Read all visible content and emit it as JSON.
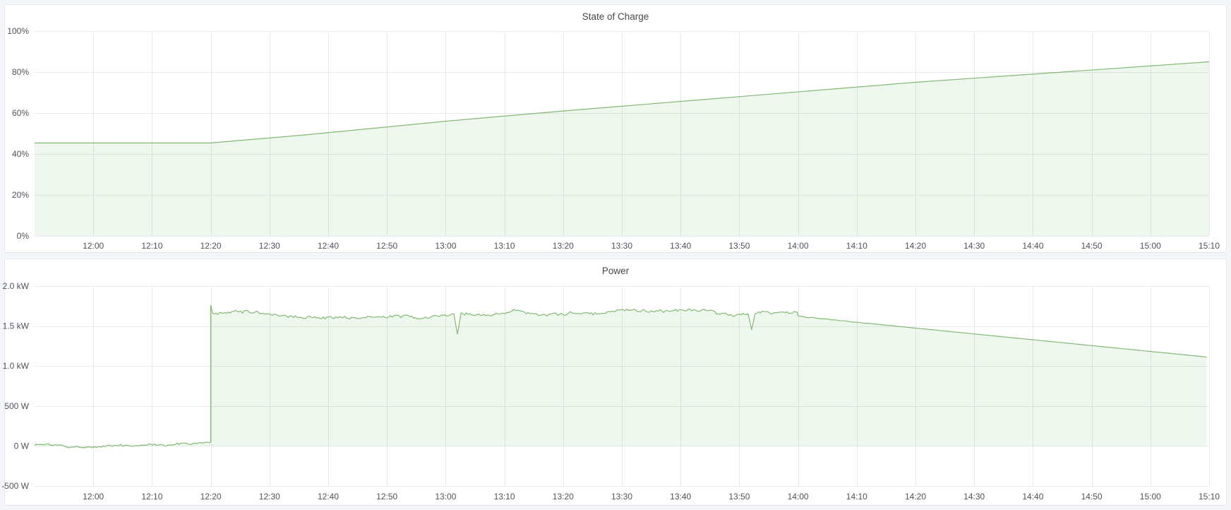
{
  "theme": {
    "page_bg": "#f4f5f9",
    "panel_bg": "#ffffff",
    "panel_border": "#e3e6ea",
    "title_color": "#44484e",
    "axis_text_color": "#4e5259",
    "grid_color": "#e7e9ec",
    "line_color": "#82b874",
    "fill_color": "rgba(115,191,105,0.12)"
  },
  "panels": [
    {
      "title": "State of Charge"
    },
    {
      "title": "Power"
    }
  ],
  "chart_data": [
    {
      "type": "area",
      "title": "State of Charge",
      "x_type": "time",
      "x_range": [
        "11:50",
        "15:10"
      ],
      "x_ticks": [
        "12:00",
        "12:10",
        "12:20",
        "12:30",
        "12:40",
        "12:50",
        "13:00",
        "13:10",
        "13:20",
        "13:30",
        "13:40",
        "13:50",
        "14:00",
        "14:10",
        "14:20",
        "14:30",
        "14:40",
        "14:50",
        "15:00",
        "15:10"
      ],
      "ylim": [
        0,
        100
      ],
      "y_ticks": [
        {
          "value": 0,
          "label": "0%"
        },
        {
          "value": 20,
          "label": "20%"
        },
        {
          "value": 40,
          "label": "40%"
        },
        {
          "value": 60,
          "label": "60%"
        },
        {
          "value": 80,
          "label": "80%"
        },
        {
          "value": 100,
          "label": "100%"
        }
      ],
      "grid": true,
      "legend": "none",
      "series": [
        {
          "name": "State of Charge",
          "mode": "knots",
          "points": [
            [
              "11:50",
              45.4
            ],
            [
              "12:20",
              45.4
            ],
            [
              "12:36",
              49.3
            ],
            [
              "13:00",
              56.0
            ],
            [
              "13:20",
              61.0
            ],
            [
              "13:50",
              68.0
            ],
            [
              "14:20",
              75.0
            ],
            [
              "14:40",
              79.0
            ],
            [
              "15:10",
              85.0
            ]
          ]
        }
      ]
    },
    {
      "type": "area",
      "title": "Power",
      "x_type": "time",
      "x_range": [
        "11:50",
        "15:10"
      ],
      "x_ticks": [
        "12:00",
        "12:10",
        "12:20",
        "12:30",
        "12:40",
        "12:50",
        "13:00",
        "13:10",
        "13:20",
        "13:30",
        "13:40",
        "13:50",
        "14:00",
        "14:10",
        "14:20",
        "14:30",
        "14:40",
        "14:50",
        "15:00",
        "15:10"
      ],
      "ylim": [
        -500,
        2000
      ],
      "y_ticks": [
        {
          "value": -500,
          "label": "-500 W"
        },
        {
          "value": 0,
          "label": "0 W"
        },
        {
          "value": 500,
          "label": "500 W"
        },
        {
          "value": 1000,
          "label": "1.0 kW"
        },
        {
          "value": 1500,
          "label": "1.5 kW"
        },
        {
          "value": 2000,
          "label": "2.0 kW"
        }
      ],
      "grid": true,
      "legend": "none",
      "noise_seed": 1337,
      "series": [
        {
          "name": "Power",
          "mode": "segments",
          "segments": [
            {
              "start": "11:50",
              "end": "12:20",
              "kind": "noise",
              "base": 20,
              "wander": 35,
              "jitter": 22,
              "step_min": 0.3
            },
            {
              "start": "12:20",
              "end": "14:00",
              "kind": "noise",
              "base": 1650,
              "wander": 50,
              "jitter": 28,
              "step_min": 0.3,
              "first_value": 1760
            },
            {
              "start": "14:00",
              "end": "15:10",
              "kind": "ramp",
              "from": 1620,
              "to": 1110,
              "jitter": 9,
              "jitter_fade_min": 18,
              "step_min": 0.8
            }
          ],
          "dips": [
            {
              "t": "13:02",
              "value": 1400
            },
            {
              "t": "13:52",
              "value": 1455
            }
          ]
        }
      ]
    }
  ]
}
